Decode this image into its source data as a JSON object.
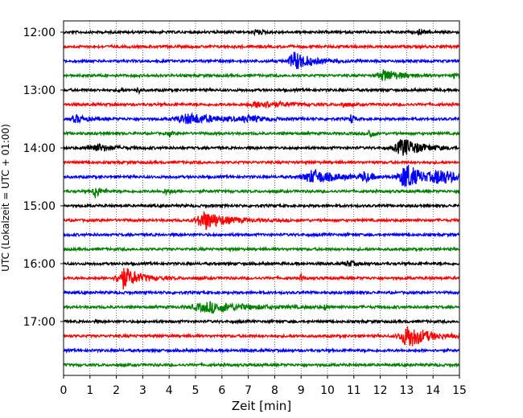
{
  "chart_data": {
    "type": "line",
    "title": "",
    "xlabel": "Zeit  [min]",
    "ylabel": "UTC (Lokalzeit = UTC + 01:00)",
    "xlim": [
      0,
      15
    ],
    "x_ticks": [
      "0",
      "1",
      "2",
      "3",
      "4",
      "5",
      "6",
      "7",
      "8",
      "9",
      "10",
      "11",
      "12",
      "13",
      "14",
      "15"
    ],
    "y_ticks": [
      "12:00",
      "13:00",
      "14:00",
      "15:00",
      "16:00",
      "17:00"
    ],
    "grid": "vertical dotted",
    "trace_interval_min": 15,
    "colors": [
      "#000000",
      "#ff0000",
      "#0000ff",
      "#008000"
    ],
    "series": [
      {
        "start": "12:00",
        "events": [
          {
            "t": 7.3,
            "amp": 3,
            "dur": 0.4
          },
          {
            "t": 13.5,
            "amp": 3,
            "dur": 0.3
          }
        ]
      },
      {
        "start": "12:15",
        "events": []
      },
      {
        "start": "12:30",
        "events": [
          {
            "t": 8.8,
            "amp": 11,
            "dur": 1.0
          }
        ]
      },
      {
        "start": "12:45",
        "events": [
          {
            "t": 12.2,
            "amp": 7,
            "dur": 1.0
          },
          {
            "t": 14.8,
            "amp": 3,
            "dur": 0.2
          }
        ]
      },
      {
        "start": "13:00",
        "events": [
          {
            "t": 2.1,
            "amp": 6,
            "dur": 0.1
          },
          {
            "t": 2.8,
            "amp": 8,
            "dur": 0.1
          }
        ]
      },
      {
        "start": "13:15",
        "events": [
          {
            "t": 7.5,
            "amp": 4,
            "dur": 1.5
          },
          {
            "t": 10.6,
            "amp": 3,
            "dur": 0.3
          }
        ]
      },
      {
        "start": "13:30",
        "events": [
          {
            "t": 0.5,
            "amp": 4,
            "dur": 0.8
          },
          {
            "t": 4.8,
            "amp": 6,
            "dur": 2.0
          },
          {
            "t": 7.0,
            "amp": 3,
            "dur": 1.0
          },
          {
            "t": 10.9,
            "amp": 6,
            "dur": 0.2
          }
        ]
      },
      {
        "start": "13:45",
        "events": [
          {
            "t": 11.6,
            "amp": 9,
            "dur": 0.2
          },
          {
            "t": 4.0,
            "amp": 3,
            "dur": 0.2
          }
        ]
      },
      {
        "start": "14:00",
        "events": [
          {
            "t": 1.2,
            "amp": 5,
            "dur": 1.0
          },
          {
            "t": 12.9,
            "amp": 11,
            "dur": 1.2
          }
        ]
      },
      {
        "start": "14:15",
        "events": []
      },
      {
        "start": "14:30",
        "events": [
          {
            "t": 9.5,
            "amp": 8,
            "dur": 1.5
          },
          {
            "t": 11.4,
            "amp": 6,
            "dur": 0.5
          },
          {
            "t": 13.0,
            "amp": 16,
            "dur": 1.0
          },
          {
            "t": 14.3,
            "amp": 8,
            "dur": 1.2
          }
        ]
      },
      {
        "start": "14:45",
        "events": [
          {
            "t": 1.2,
            "amp": 9,
            "dur": 0.3
          },
          {
            "t": 3.9,
            "amp": 3,
            "dur": 0.4
          }
        ]
      },
      {
        "start": "15:00",
        "events": []
      },
      {
        "start": "15:15",
        "events": [
          {
            "t": 5.4,
            "amp": 11,
            "dur": 1.3
          }
        ]
      },
      {
        "start": "15:30",
        "events": []
      },
      {
        "start": "15:45",
        "events": []
      },
      {
        "start": "16:00",
        "events": [
          {
            "t": 10.8,
            "amp": 3,
            "dur": 0.5
          }
        ]
      },
      {
        "start": "16:15",
        "events": [
          {
            "t": 2.3,
            "amp": 13,
            "dur": 1.0
          },
          {
            "t": 9.0,
            "amp": 5,
            "dur": 0.1
          }
        ]
      },
      {
        "start": "16:30",
        "events": []
      },
      {
        "start": "16:45",
        "events": [
          {
            "t": 5.6,
            "amp": 6,
            "dur": 2.5
          },
          {
            "t": 9.9,
            "amp": 3,
            "dur": 0.1
          }
        ]
      },
      {
        "start": "17:00",
        "events": []
      },
      {
        "start": "17:15",
        "events": [
          {
            "t": 13.1,
            "amp": 14,
            "dur": 1.2
          }
        ]
      },
      {
        "start": "17:30",
        "events": []
      },
      {
        "start": "17:45",
        "events": []
      }
    ]
  }
}
